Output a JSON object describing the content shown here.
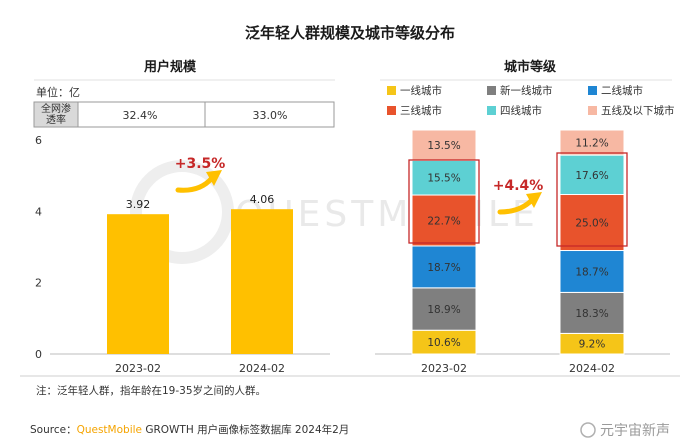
{
  "title": "泛年轻人群规模及城市等级分布",
  "left": {
    "subtitle": "用户规模",
    "unit_label": "单位：亿",
    "penetration_label_line1": "全网渗",
    "penetration_label_line2": "透率",
    "penetration_values": [
      "32.4%",
      "33.0%"
    ],
    "delta_label": "+3.5%",
    "bar_color": "#ffc000"
  },
  "right": {
    "subtitle": "城市等级",
    "delta_label": "+4.4%",
    "highlight_color": "#c62828"
  },
  "chart_data": [
    {
      "type": "bar",
      "title": "用户规模",
      "categories": [
        "2023-02",
        "2024-02"
      ],
      "values": [
        3.92,
        4.06
      ],
      "value_labels": [
        "3.92",
        "4.06"
      ],
      "ylim": [
        0,
        6
      ],
      "yticks": [
        "0",
        "2",
        "4",
        "6"
      ],
      "grid": false
    },
    {
      "type": "bar",
      "stacked": true,
      "title": "城市等级",
      "categories": [
        "2023-02",
        "2024-02"
      ],
      "legend_position": "top",
      "series": [
        {
          "name": "一线城市",
          "color": "#f5c518",
          "values": [
            10.6,
            9.2
          ],
          "labels": [
            "10.6%",
            "9.2%"
          ]
        },
        {
          "name": "新一线城市",
          "color": "#7f7f7f",
          "values": [
            18.9,
            18.3
          ],
          "labels": [
            "18.9%",
            "18.3%"
          ]
        },
        {
          "name": "二线城市",
          "color": "#1f86d3",
          "values": [
            18.7,
            18.7
          ],
          "labels": [
            "18.7%",
            "18.7%"
          ]
        },
        {
          "name": "三线城市",
          "color": "#e8532c",
          "values": [
            22.7,
            25.0
          ],
          "labels": [
            "22.7%",
            "25.0%"
          ]
        },
        {
          "name": "四线城市",
          "color": "#5dd0d3",
          "values": [
            15.5,
            17.6
          ],
          "labels": [
            "15.5%",
            "17.6%"
          ]
        },
        {
          "name": "五线及以下城市",
          "color": "#f7b8a3",
          "values": [
            13.5,
            11.2
          ],
          "labels": [
            "13.5%",
            "11.2%"
          ]
        }
      ]
    }
  ],
  "note": "注：泛年轻人群，指年龄在19-35岁之间的人群。",
  "source_prefix": "Source：",
  "source_brand": "QuestMobile",
  "source_rest": " GROWTH 用户画像标签数据库 2024年2月",
  "watermark_text": "QUESTMOBILE",
  "weibo_watermark": "元宇宙新声"
}
